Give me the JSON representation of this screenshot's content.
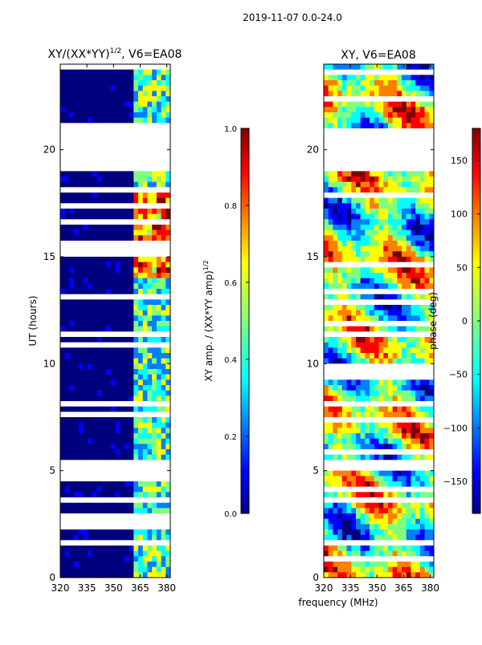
{
  "suptitle": "2019-11-07 0.0-24.0",
  "xlabel_shared": "frequency (MHz)",
  "colors": {
    "jet": [
      "#00007f",
      "#0000ff",
      "#007fff",
      "#00ffff",
      "#7fff7f",
      "#ffff00",
      "#ff7f00",
      "#ff0000",
      "#7f0000"
    ],
    "gap": "#ffffff"
  },
  "chart_data": [
    {
      "type": "heatmap",
      "id": "amp",
      "title_main": "XY/(XX*YY)",
      "title_exp": "1/2",
      "title_suffix": ", V6=EA08",
      "xlabel": "",
      "ylabel": "UT (hours)",
      "xlim": [
        320,
        382
      ],
      "ylim": [
        0,
        24
      ],
      "xticks": [
        "320",
        "335",
        "350",
        "365",
        "380"
      ],
      "yticks": [
        "0",
        "5",
        "10",
        "15",
        "20"
      ],
      "gaps_hours": [
        [
          4.9,
          5.6
        ],
        [
          18.9,
          20.9
        ]
      ],
      "colorbar": {
        "label_main": "XY amp. / (XX*YY amp)",
        "label_exp": "1/2",
        "range": [
          0,
          1
        ],
        "ticks": [
          "0.0",
          "0.2",
          "0.4",
          "0.6",
          "0.8",
          "1.0"
        ]
      }
    },
    {
      "type": "heatmap",
      "id": "phase",
      "title_main": "XY, V6=EA08",
      "xlabel": "",
      "ylabel": "",
      "xlim": [
        320,
        382
      ],
      "ylim": [
        0,
        24
      ],
      "xticks": [
        "320",
        "335",
        "350",
        "365",
        "380"
      ],
      "yticks": [
        "0",
        "5",
        "10",
        "15",
        "20"
      ],
      "gaps_hours": [
        [
          4.9,
          5.6
        ],
        [
          18.9,
          20.9
        ]
      ],
      "colorbar": {
        "label_main": "phase (deg)",
        "range": [
          -180,
          180
        ],
        "ticks": [
          "−150",
          "−100",
          "−50",
          "0",
          "50",
          "100",
          "150"
        ]
      }
    }
  ]
}
